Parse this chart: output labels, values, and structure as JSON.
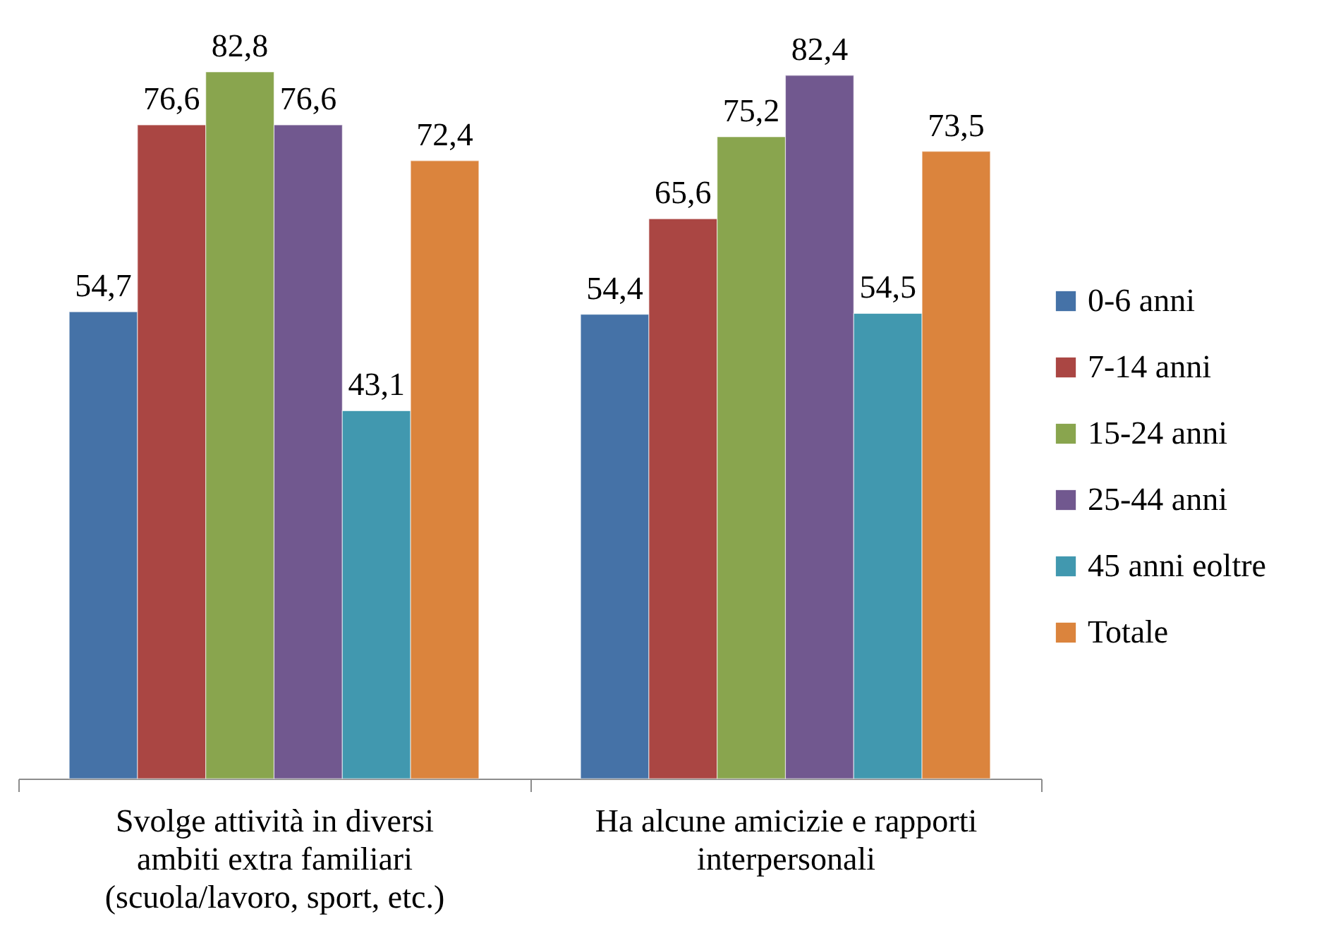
{
  "chart_data": {
    "type": "bar",
    "categories": [
      "Svolge attività in diversi ambiti extra familiari (scuola/lavoro, sport, etc.)",
      "Ha alcune amicizie e rapporti interpersonali"
    ],
    "series": [
      {
        "name": "0-6 anni",
        "color": "#4572a7",
        "values": [
          54.7,
          54.4
        ],
        "value_labels": [
          "54,7",
          "54,4"
        ]
      },
      {
        "name": "7-14 anni",
        "color": "#aa4643",
        "values": [
          76.6,
          65.6
        ],
        "value_labels": [
          "76,6",
          "65,6"
        ]
      },
      {
        "name": "15-24 anni",
        "color": "#89a54e",
        "values": [
          82.8,
          75.2
        ],
        "value_labels": [
          "82,8",
          "75,2"
        ]
      },
      {
        "name": "25-44 anni",
        "color": "#71588f",
        "values": [
          76.6,
          82.4
        ],
        "value_labels": [
          "76,6",
          "82,4"
        ]
      },
      {
        "name": "45 anni eoltre",
        "color": "#4198af",
        "values": [
          43.1,
          54.5
        ],
        "value_labels": [
          "43,1",
          "54,5"
        ]
      },
      {
        "name": "Totale",
        "color": "#db843d",
        "values": [
          72.4,
          73.5
        ],
        "value_labels": [
          "72,4",
          "73,5"
        ]
      }
    ],
    "legend": "right",
    "tick_labels": "x"
  }
}
